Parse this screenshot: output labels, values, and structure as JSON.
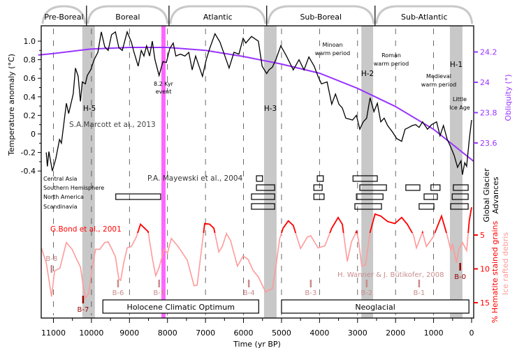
{
  "chart_data": {
    "type": "line",
    "xlabel": "Time (yr BP)",
    "xlim": [
      11400,
      -50
    ],
    "xticks": [
      11000,
      10000,
      9000,
      8000,
      7000,
      6000,
      5000,
      4000,
      3000,
      2000,
      1000,
      0
    ],
    "ylabel_left": "Temperature anomaly (°C)",
    "ylim_left": [
      -0.6,
      1.15
    ],
    "yticks_left": [
      "-0.4",
      "-0.2",
      "0",
      "0.2",
      "0.4",
      "0.6",
      "0.8",
      "1.0"
    ],
    "ylabel_obliquity": "Obliquity (°)",
    "yticks_obliquity": [
      "23.6",
      "23.8",
      "24",
      "24.2"
    ],
    "ylabel_glacier": [
      "Global Glacier",
      "Advances"
    ],
    "ylabel_hematite": "% Hematite stained grains",
    "ylabel_ird": "Ice rafted debris",
    "yticks_hematite": [
      "5",
      "10",
      "15"
    ],
    "grid": false,
    "colors": {
      "temperature": "#000000",
      "obliquity": "#9933ff",
      "hematite_high": "#ff0000",
      "hematite_low": "#ff9a9a",
      "bands": "#c8c8c8",
      "event_8_2": "#ff66ff",
      "bond_marker": "#c98c8c",
      "bond_marker_dark": "#990000"
    },
    "periods": [
      {
        "name": "Pre-Boreal",
        "from": 11400,
        "to": 10130
      },
      {
        "name": "Boreal",
        "from": 10130,
        "to": 7960
      },
      {
        "name": "Atlantic",
        "from": 7960,
        "to": 5390
      },
      {
        "name": "Sub-Boreal",
        "from": 5390,
        "to": 2540
      },
      {
        "name": "Sub-Atlantic",
        "from": 2540,
        "to": -50
      }
    ],
    "cold_events": [
      {
        "label": "H-5",
        "from": 10240,
        "to": 9910
      },
      {
        "label": "H-3",
        "from": 5460,
        "to": 5130
      },
      {
        "label": "H-2",
        "from": 2900,
        "to": 2590
      },
      {
        "label": "H-1",
        "from": 570,
        "to": 240
      }
    ],
    "event_8_2": {
      "label_line1": "8.2 Kyr",
      "label_line2": "event",
      "from": 8160,
      "to": 8050
    },
    "annotations": {
      "marcott": "S.A.Marcott et al., 2013",
      "mayewski": "P.A. Mayewski et al., 2004",
      "bond": "G.Bond et al., 2001",
      "wanner": "H. Wanner & J. Bütikofer, 2008",
      "minoan": [
        "Minoan",
        "warm period"
      ],
      "roman": [
        "Roman",
        "warm period"
      ],
      "medieval": [
        "Medieval",
        "warm period"
      ],
      "lia": [
        "Little",
        "Ice Age"
      ]
    },
    "series": [
      {
        "name": "S.A.Marcott et al., 2013",
        "axis": "temperature",
        "points": [
          [
            11190,
            -0.2
          ],
          [
            11160,
            -0.35
          ],
          [
            11120,
            -0.19
          ],
          [
            11030,
            -0.4
          ],
          [
            10940,
            -0.27
          ],
          [
            10840,
            -0.06
          ],
          [
            10790,
            -0.1
          ],
          [
            10660,
            0.33
          ],
          [
            10600,
            0.22
          ],
          [
            10480,
            0.43
          ],
          [
            10420,
            0.71
          ],
          [
            10350,
            0.62
          ],
          [
            10290,
            0.35
          ],
          [
            10240,
            0.56
          ],
          [
            10160,
            0.54
          ],
          [
            10110,
            0.63
          ],
          [
            10020,
            0.69
          ],
          [
            9930,
            0.8
          ],
          [
            9830,
            0.88
          ],
          [
            9740,
            1.1
          ],
          [
            9650,
            0.94
          ],
          [
            9560,
            0.9
          ],
          [
            9470,
            1.07
          ],
          [
            9370,
            1.1
          ],
          [
            9280,
            0.93
          ],
          [
            9190,
            0.9
          ],
          [
            9060,
            1.1
          ],
          [
            8950,
            0.99
          ],
          [
            8880,
            0.88
          ],
          [
            8770,
            0.73
          ],
          [
            8690,
            0.9
          ],
          [
            8620,
            0.84
          ],
          [
            8550,
            0.95
          ],
          [
            8470,
            0.84
          ],
          [
            8400,
            1.0
          ],
          [
            8330,
            0.8
          ],
          [
            8220,
            0.63
          ],
          [
            8120,
            0.78
          ],
          [
            8030,
            0.77
          ],
          [
            7940,
            0.92
          ],
          [
            7850,
            0.98
          ],
          [
            7780,
            0.84
          ],
          [
            7660,
            0.86
          ],
          [
            7540,
            0.84
          ],
          [
            7440,
            0.88
          ],
          [
            7350,
            0.69
          ],
          [
            7260,
            0.84
          ],
          [
            7170,
            0.73
          ],
          [
            7080,
            0.62
          ],
          [
            6980,
            0.8
          ],
          [
            6890,
            0.92
          ],
          [
            6750,
            1.08
          ],
          [
            6620,
            0.99
          ],
          [
            6490,
            0.84
          ],
          [
            6380,
            0.71
          ],
          [
            6250,
            0.88
          ],
          [
            6120,
            0.86
          ],
          [
            6010,
            1.03
          ],
          [
            5940,
            0.98
          ],
          [
            5790,
            1.05
          ],
          [
            5610,
            1.0
          ],
          [
            5510,
            0.73
          ],
          [
            5390,
            0.65
          ],
          [
            5330,
            0.69
          ],
          [
            5240,
            0.72
          ],
          [
            5150,
            0.8
          ],
          [
            5020,
            0.95
          ],
          [
            4870,
            0.84
          ],
          [
            4690,
            0.69
          ],
          [
            4540,
            0.8
          ],
          [
            4410,
            0.69
          ],
          [
            4280,
            0.83
          ],
          [
            4140,
            0.73
          ],
          [
            4040,
            0.62
          ],
          [
            3950,
            0.54
          ],
          [
            3800,
            0.56
          ],
          [
            3680,
            0.32
          ],
          [
            3580,
            0.43
          ],
          [
            3490,
            0.32
          ],
          [
            3400,
            0.28
          ],
          [
            3310,
            0.17
          ],
          [
            3130,
            0.15
          ],
          [
            3030,
            0.2
          ],
          [
            2940,
            0.05
          ],
          [
            2850,
            0.13
          ],
          [
            2760,
            0.17
          ],
          [
            2670,
            0.39
          ],
          [
            2570,
            0.24
          ],
          [
            2480,
            0.33
          ],
          [
            2390,
            0.13
          ],
          [
            2300,
            0.17
          ],
          [
            2210,
            0.09
          ],
          [
            2080,
            0.02
          ],
          [
            1970,
            -0.05
          ],
          [
            1840,
            -0.08
          ],
          [
            1750,
            0.05
          ],
          [
            1650,
            0.07
          ],
          [
            1560,
            0.09
          ],
          [
            1470,
            0.1
          ],
          [
            1380,
            0.07
          ],
          [
            1290,
            0.13
          ],
          [
            1160,
            0.05
          ],
          [
            1050,
            0.1
          ],
          [
            920,
            0.13
          ],
          [
            830,
            -0.02
          ],
          [
            740,
            0.09
          ],
          [
            640,
            -0.06
          ],
          [
            550,
            -0.14
          ],
          [
            460,
            -0.23
          ],
          [
            370,
            -0.36
          ],
          [
            280,
            -0.29
          ],
          [
            240,
            -0.44
          ],
          [
            180,
            -0.31
          ],
          [
            130,
            -0.35
          ],
          [
            60,
            -0.06
          ],
          [
            0,
            0.15
          ]
        ]
      },
      {
        "axis": "obliquity",
        "points": [
          [
            11400,
            24.18
          ],
          [
            11000,
            24.19
          ],
          [
            10000,
            24.22
          ],
          [
            9000,
            24.23
          ],
          [
            8000,
            24.23
          ],
          [
            7000,
            24.21
          ],
          [
            6000,
            24.17
          ],
          [
            5000,
            24.12
          ],
          [
            4000,
            24.06
          ],
          [
            3000,
            23.96
          ],
          [
            2000,
            23.84
          ],
          [
            1000,
            23.69
          ],
          [
            0,
            23.49
          ],
          [
            -50,
            23.48
          ]
        ]
      },
      {
        "name": "G.Bond et al., 2001",
        "axis": "hematite",
        "points": [
          [
            11320,
            6.9
          ],
          [
            11190,
            9.1
          ],
          [
            11050,
            14.1
          ],
          [
            10970,
            10.3
          ],
          [
            10830,
            9.9
          ],
          [
            10660,
            6.1
          ],
          [
            10510,
            7.1
          ],
          [
            10380,
            8.7
          ],
          [
            10290,
            9.7
          ],
          [
            10200,
            13.2
          ],
          [
            10150,
            14.3
          ],
          [
            10070,
            13.6
          ],
          [
            9980,
            9.7
          ],
          [
            9890,
            7.1
          ],
          [
            9780,
            7.1
          ],
          [
            9650,
            6.1
          ],
          [
            9560,
            6.0
          ],
          [
            9470,
            7.0
          ],
          [
            9370,
            8.2
          ],
          [
            9280,
            11.5
          ],
          [
            9230,
            11.7
          ],
          [
            9150,
            9.1
          ],
          [
            9060,
            6.9
          ],
          [
            8950,
            6.7
          ],
          [
            8820,
            5.3
          ],
          [
            8710,
            3.4
          ],
          [
            8600,
            4.0
          ],
          [
            8510,
            4.5
          ],
          [
            8400,
            8.4
          ],
          [
            8310,
            11.0
          ],
          [
            8220,
            9.8
          ],
          [
            8090,
            7.1
          ],
          [
            8000,
            7.7
          ],
          [
            7900,
            5.5
          ],
          [
            7720,
            6.7
          ],
          [
            7480,
            8.7
          ],
          [
            7300,
            12.5
          ],
          [
            7220,
            12.4
          ],
          [
            7110,
            7.4
          ],
          [
            7020,
            3.3
          ],
          [
            6890,
            3.4
          ],
          [
            6780,
            4.0
          ],
          [
            6650,
            7.5
          ],
          [
            6560,
            6.7
          ],
          [
            6450,
            4.8
          ],
          [
            6340,
            5.8
          ],
          [
            6160,
            9.6
          ],
          [
            6010,
            8.1
          ],
          [
            5880,
            8.6
          ],
          [
            5750,
            10.2
          ],
          [
            5610,
            11.2
          ],
          [
            5420,
            13.4
          ],
          [
            5240,
            12.9
          ],
          [
            5150,
            9.7
          ],
          [
            5050,
            5.6
          ],
          [
            4960,
            4.0
          ],
          [
            4820,
            2.9
          ],
          [
            4690,
            3.6
          ],
          [
            4500,
            7.0
          ],
          [
            4320,
            5.3
          ],
          [
            4230,
            5.1
          ],
          [
            4040,
            6.9
          ],
          [
            3860,
            6.6
          ],
          [
            3680,
            4.0
          ],
          [
            3510,
            2.4
          ],
          [
            3400,
            3.4
          ],
          [
            3270,
            8.9
          ],
          [
            3160,
            6.0
          ],
          [
            3030,
            4.5
          ],
          [
            2980,
            5.6
          ],
          [
            2890,
            9.6
          ],
          [
            2790,
            9.4
          ],
          [
            2670,
            4.6
          ],
          [
            2540,
            1.9
          ],
          [
            2390,
            2.2
          ],
          [
            2210,
            3.0
          ],
          [
            2020,
            3.3
          ],
          [
            1840,
            2.4
          ],
          [
            1690,
            3.4
          ],
          [
            1530,
            5.0
          ],
          [
            1450,
            6.9
          ],
          [
            1290,
            4.6
          ],
          [
            1190,
            6.7
          ],
          [
            1010,
            5.3
          ],
          [
            790,
            2.2
          ],
          [
            640,
            5.1
          ],
          [
            550,
            7.2
          ],
          [
            500,
            6.3
          ],
          [
            400,
            9.1
          ],
          [
            330,
            7.0
          ],
          [
            240,
            6.1
          ],
          [
            130,
            7.3
          ],
          [
            60,
            2.9
          ],
          [
            0,
            0.9
          ]
        ]
      }
    ],
    "glacier_regions": [
      "Central Asia",
      "Southern Hemisphere",
      "North America",
      "Scandinavia"
    ],
    "glacier_advances": [
      [
        [
          5660,
          5500
        ],
        [
          4060,
          3900
        ],
        [
          3120,
          2480
        ]
      ],
      [
        [
          5660,
          5180
        ],
        [
          4150,
          3930
        ],
        [
          2940,
          2240
        ],
        [
          1730,
          1360
        ],
        [
          1070,
          830
        ],
        [
          480,
          90
        ]
      ],
      [
        [
          9360,
          8180
        ],
        [
          5790,
          5180
        ],
        [
          4150,
          3880
        ],
        [
          3030,
          2330
        ],
        [
          1250,
          900
        ],
        [
          510,
          90
        ]
      ],
      [
        [
          5790,
          5180
        ],
        [
          3070,
          2370
        ],
        [
          1380,
          990
        ],
        [
          550,
          90
        ]
      ]
    ],
    "bond_events": [
      {
        "label": "B-8",
        "year": 11050,
        "dark": false
      },
      {
        "label": "B-7",
        "year": 10220,
        "dark": true
      },
      {
        "label": "B-6",
        "year": 9300,
        "dark": false
      },
      {
        "label": "B-5",
        "year": 8220,
        "dark": false
      },
      {
        "label": "B-4",
        "year": 5860,
        "dark": false
      },
      {
        "label": "B-3",
        "year": 4230,
        "dark": false
      },
      {
        "label": "B-2",
        "year": 2760,
        "dark": false
      },
      {
        "label": "B-1",
        "year": 1380,
        "dark": false
      },
      {
        "label": "B-0",
        "year": 300,
        "dark": true
      }
    ],
    "climate_phases": [
      {
        "label": "Holocene Climatic Optimum",
        "from": 9700,
        "to": 5600
      },
      {
        "label": "Neoglacial",
        "from": 5000,
        "to": 70
      }
    ]
  }
}
